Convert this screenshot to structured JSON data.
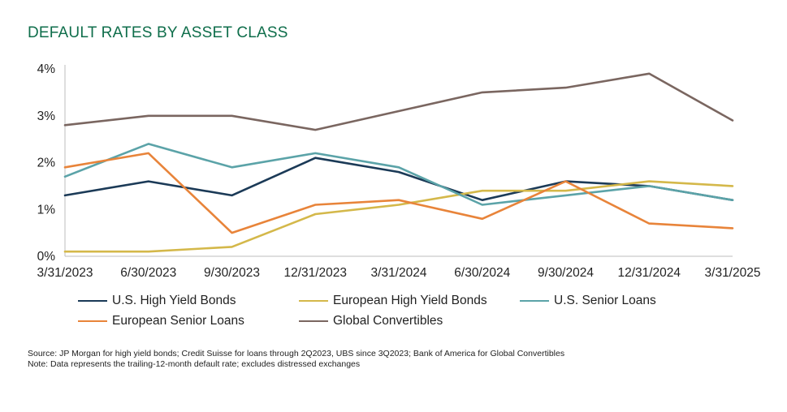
{
  "title": "DEFAULT RATES BY ASSET CLASS",
  "chart_data": {
    "type": "line",
    "title": "DEFAULT RATES BY ASSET CLASS",
    "categories": [
      "3/31/2023",
      "6/30/2023",
      "9/30/2023",
      "12/31/2023",
      "3/31/2024",
      "6/30/2024",
      "9/30/2024",
      "12/31/2024",
      "3/31/2025"
    ],
    "yticks": [
      "0%",
      "1%",
      "2%",
      "3%",
      "4%"
    ],
    "ylim": [
      0,
      4
    ],
    "grid": false,
    "legend_position": "bottom",
    "series": [
      {
        "name": "U.S. High Yield Bonds",
        "color": "#1b3a57",
        "values": [
          1.3,
          1.6,
          1.3,
          2.1,
          1.8,
          1.2,
          1.6,
          1.5,
          1.2
        ]
      },
      {
        "name": "European High Yield Bonds",
        "color": "#d4b84a",
        "values": [
          0.1,
          0.1,
          0.2,
          0.9,
          1.1,
          1.4,
          1.4,
          1.6,
          1.5
        ]
      },
      {
        "name": "U.S. Senior Loans",
        "color": "#5ba3a8",
        "values": [
          1.7,
          2.4,
          1.9,
          2.2,
          1.9,
          1.1,
          1.3,
          1.5,
          1.2
        ]
      },
      {
        "name": "European Senior Loans",
        "color": "#e8843a",
        "values": [
          1.9,
          2.2,
          0.5,
          1.1,
          1.2,
          0.8,
          1.6,
          0.7,
          0.6
        ]
      },
      {
        "name": "Global Convertibles",
        "color": "#7a6660",
        "values": [
          2.8,
          3.0,
          3.0,
          2.7,
          3.1,
          3.5,
          3.6,
          3.9,
          2.9
        ]
      }
    ]
  },
  "notes": {
    "source": "Source: JP Morgan for high yield bonds; Credit Suisse for loans through 2Q2023, UBS since 3Q2023; Bank of America for Global Convertibles",
    "note": "Note: Data represents the trailing-12-month default rate; excludes distressed exchanges"
  }
}
